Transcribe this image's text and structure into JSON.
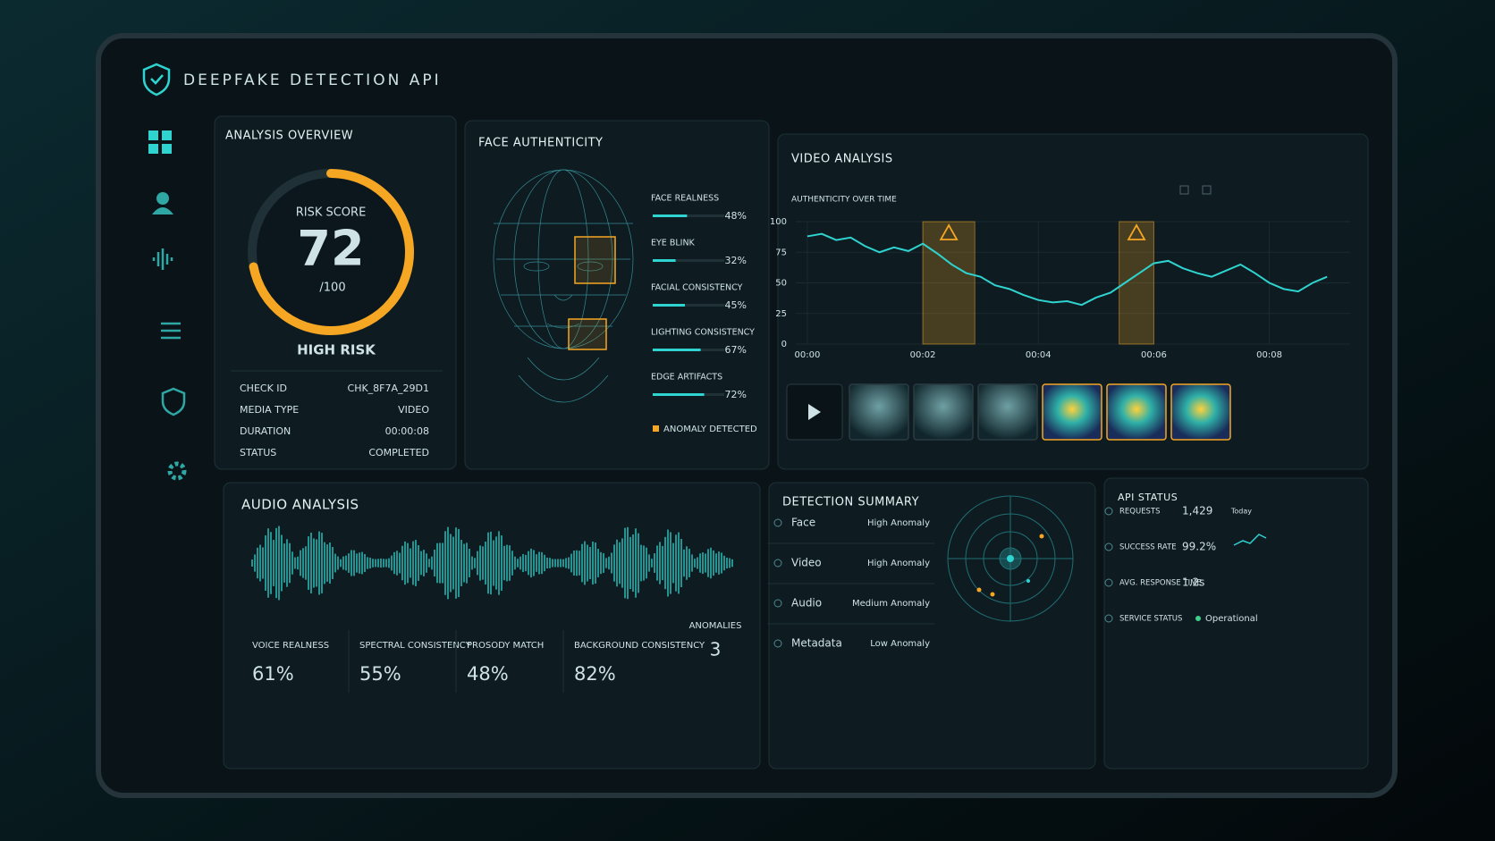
{
  "header": {
    "title": "DEEPFAKE DETECTION API"
  },
  "analysis_overview": {
    "title": "ANALYSIS OVERVIEW",
    "risk_label": "RISK SCORE",
    "risk_score": 72,
    "risk_max": {
      "value": 100,
      "label": "/100"
    },
    "risk_level": "HIGH RISK",
    "details": [
      [
        "CHECK ID",
        "CHK_8F7A_29D1"
      ],
      [
        "MEDIA TYPE",
        "VIDEO"
      ],
      [
        "DURATION",
        "00:00:08"
      ],
      [
        "STATUS",
        "COMPLETED"
      ]
    ]
  },
  "face_authenticity": {
    "title": "FACE AUTHENTICITY",
    "xlim": [
      0,
      100
    ],
    "metrics": [
      {
        "name": "FACE REALNESS",
        "value": 48,
        "value_label": "48%"
      },
      {
        "name": "EYE BLINK",
        "value": 32,
        "value_label": "32%"
      },
      {
        "name": "FACIAL CONSISTENCY",
        "value": 45,
        "value_label": "45%"
      },
      {
        "name": "LIGHTING CONSISTENCY",
        "value": 67,
        "value_label": "67%"
      },
      {
        "name": "EDGE ARTIFACTS",
        "value": 72,
        "value_label": "72%"
      }
    ],
    "legend": "ANOMALY DETECTED"
  },
  "video_analysis": {
    "title": "VIDEO ANALYSIS",
    "chart": {
      "type": "line",
      "title": "AUTHENTICITY OVER TIME",
      "color": "#2fd3cf",
      "x": [
        0,
        0.25,
        0.5,
        0.75,
        1,
        1.25,
        1.5,
        1.75,
        2,
        2.25,
        2.5,
        2.75,
        3,
        3.25,
        3.5,
        3.75,
        4,
        4.25,
        4.5,
        4.75,
        5,
        5.25,
        5.5,
        5.75,
        6,
        6.25,
        6.5,
        6.75,
        7,
        7.25,
        7.5,
        7.75,
        8,
        8.25,
        8.5,
        8.75,
        9
      ],
      "values": [
        88,
        90,
        85,
        87,
        80,
        75,
        79,
        76,
        82,
        74,
        65,
        58,
        55,
        48,
        45,
        40,
        36,
        34,
        35,
        32,
        38,
        42,
        50,
        58,
        66,
        68,
        62,
        58,
        55,
        60,
        65,
        58,
        50,
        45,
        43,
        50,
        55
      ],
      "xlim": [
        -0.2,
        9.4
      ],
      "ylim": [
        0,
        100
      ],
      "yticks": [
        0,
        25,
        50,
        75,
        100
      ],
      "xticks": [
        {
          "value": 0,
          "label": "00:00"
        },
        {
          "value": 2,
          "label": "00:02"
        },
        {
          "value": 4,
          "label": "00:04"
        },
        {
          "value": 6,
          "label": "00:06"
        },
        {
          "value": 8,
          "label": "00:08"
        }
      ],
      "anomaly_windows": [
        [
          2.0,
          2.9
        ],
        [
          5.4,
          6.0
        ]
      ]
    }
  },
  "audio_analysis": {
    "title": "AUDIO ANALYSIS",
    "metrics": [
      [
        "VOICE REALNESS",
        "61%"
      ],
      [
        "SPECTRAL CONSISTENCY",
        "55%"
      ],
      [
        "PROSODY MATCH",
        "48%"
      ],
      [
        "BACKGROUND CONSISTENCY",
        "82%"
      ]
    ],
    "anomalies_label": "ANOMALIES",
    "anomalies": 3
  },
  "detection_summary": {
    "title": "DETECTION SUMMARY",
    "rows": [
      {
        "name": "Face",
        "level": "High Anomaly",
        "color": "#f5a623"
      },
      {
        "name": "Video",
        "level": "High Anomaly",
        "color": "#f5a623"
      },
      {
        "name": "Audio",
        "level": "Medium Anomaly",
        "color": "#f2c230"
      },
      {
        "name": "Metadata",
        "level": "Low Anomaly",
        "color": "#3fd18a"
      }
    ]
  },
  "api_status": {
    "title": "API STATUS",
    "rows": [
      {
        "name": "REQUESTS",
        "value": "1,429",
        "note": "Today"
      },
      {
        "name": "SUCCESS RATE",
        "value": "99.2%"
      },
      {
        "name": "AVG. RESPONSE TIME",
        "value": "1.2s"
      },
      {
        "name": "SERVICE STATUS",
        "value": "Operational"
      }
    ]
  }
}
